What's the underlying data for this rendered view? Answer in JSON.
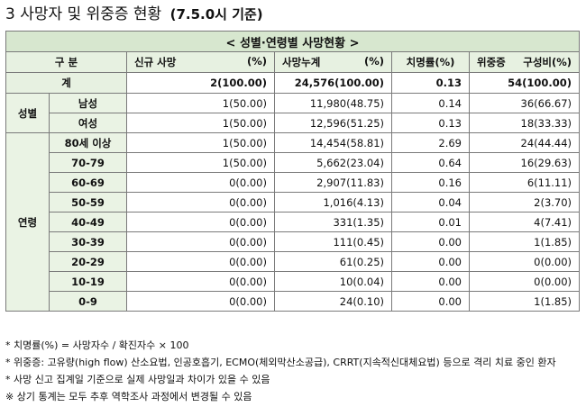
{
  "title": {
    "main": "3 사망자 및 위중증 현황",
    "date": "(7.5.0시 기준)"
  },
  "table": {
    "banner": "< 성별·연령별 사망현황 >",
    "headers": {
      "category": "구 분",
      "new_deaths": "신규 사망",
      "new_deaths_unit": "(%)",
      "total_deaths": "사망누계",
      "total_deaths_unit": "(%)",
      "fatality_rate": "치명률(%)",
      "severe": "위중증",
      "severe_share": "구성비(%)"
    },
    "total": {
      "label": "계",
      "new_deaths": "2(100.00)",
      "total_deaths": "24,576(100.00)",
      "fatality_rate": "0.13",
      "severe": "54(100.00)"
    },
    "sex_group_label": "성별",
    "sex_rows": [
      {
        "label": "남성",
        "new_deaths": "1(50.00)",
        "total_deaths": "11,980(48.75)",
        "fatality_rate": "0.14",
        "severe": "36(66.67)"
      },
      {
        "label": "여성",
        "new_deaths": "1(50.00)",
        "total_deaths": "12,596(51.25)",
        "fatality_rate": "0.13",
        "severe": "18(33.33)"
      }
    ],
    "age_group_label": "연령",
    "age_rows": [
      {
        "label": "80세 이상",
        "new_deaths": "1(50.00)",
        "total_deaths": "14,454(58.81)",
        "fatality_rate": "2.69",
        "severe": "24(44.44)"
      },
      {
        "label": "70-79",
        "new_deaths": "1(50.00)",
        "total_deaths": "5,662(23.04)",
        "fatality_rate": "0.64",
        "severe": "16(29.63)"
      },
      {
        "label": "60-69",
        "new_deaths": "0(0.00)",
        "total_deaths": "2,907(11.83)",
        "fatality_rate": "0.16",
        "severe": "6(11.11)"
      },
      {
        "label": "50-59",
        "new_deaths": "0(0.00)",
        "total_deaths": "1,016(4.13)",
        "fatality_rate": "0.04",
        "severe": "2(3.70)"
      },
      {
        "label": "40-49",
        "new_deaths": "0(0.00)",
        "total_deaths": "331(1.35)",
        "fatality_rate": "0.01",
        "severe": "4(7.41)"
      },
      {
        "label": "30-39",
        "new_deaths": "0(0.00)",
        "total_deaths": "111(0.45)",
        "fatality_rate": "0.00",
        "severe": "1(1.85)"
      },
      {
        "label": "20-29",
        "new_deaths": "0(0.00)",
        "total_deaths": "61(0.25)",
        "fatality_rate": "0.00",
        "severe": "0(0.00)"
      },
      {
        "label": "10-19",
        "new_deaths": "0(0.00)",
        "total_deaths": "10(0.04)",
        "fatality_rate": "0.00",
        "severe": "0(0.00)"
      },
      {
        "label": "0-9",
        "new_deaths": "0(0.00)",
        "total_deaths": "24(0.10)",
        "fatality_rate": "0.00",
        "severe": "1(1.85)"
      }
    ]
  },
  "notes": [
    "* 치명률(%) = 사망자수 / 확진자수 × 100",
    "* 위중증: 고유량(high flow) 산소요법, 인공호흡기, ECMO(체외막산소공급), CRRT(지속적신대체요법) 등으로 격리 치료 중인 환자",
    "* 사망 신고 집계일 기준으로 실제 사망일과 차이가 있을 수 있음",
    "※ 상기 통계는 모두 추후 역학조사 과정에서 변경될 수 있음"
  ]
}
